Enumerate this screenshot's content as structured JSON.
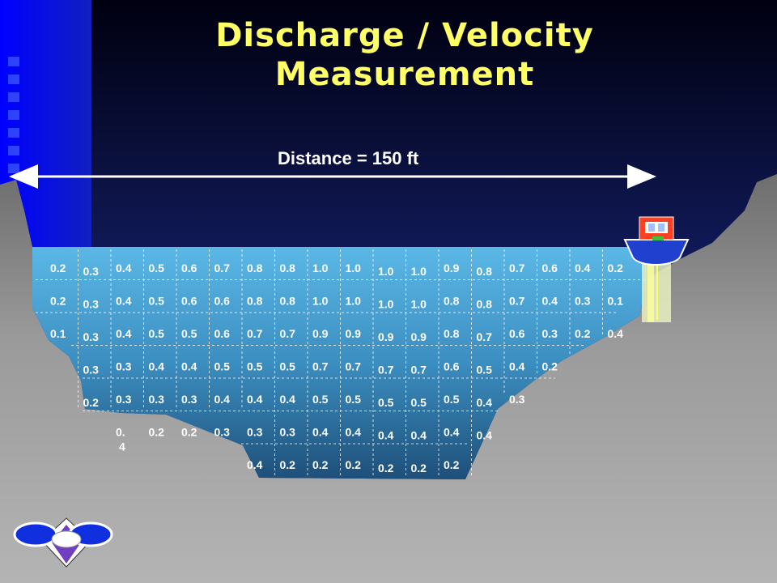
{
  "slide": {
    "title_line1": "Discharge / Velocity",
    "title_line2": "Measurement",
    "distance_label": "Distance = 150 ft",
    "colors": {
      "sky_top": "#000010",
      "sky_bottom": "#2A3AA0",
      "title": "#FFFF66",
      "water_top": "#5BB8E6",
      "water_bottom": "#1E4F7A",
      "bank": "#9A9A9A"
    }
  },
  "velocity_grid": {
    "rows": [
      [
        "0.2",
        "0.3",
        "0.4",
        "0.5",
        "0.6",
        "0.7",
        "0.8",
        "0.8",
        "1.0",
        "1.0",
        "1.0",
        "1.0",
        "0.9",
        "0.8",
        "0.7",
        "0.6",
        "0.4",
        "0.2"
      ],
      [
        "0.2",
        "0.3",
        "0.4",
        "0.5",
        "0.6",
        "0.6",
        "0.8",
        "0.8",
        "1.0",
        "1.0",
        "1.0",
        "1.0",
        "0.8",
        "0.8",
        "0.7",
        "0.4",
        "0.3",
        "0.1"
      ],
      [
        "0.1",
        "0.3",
        "0.4",
        "0.5",
        "0.5",
        "0.6",
        "0.7",
        "0.7",
        "0.9",
        "0.9",
        "0.9",
        "0.9",
        "0.8",
        "0.7",
        "0.6",
        "0.3",
        "0.2",
        "0.4"
      ],
      [
        "",
        "0.3",
        "0.3",
        "0.4",
        "0.4",
        "0.5",
        "0.5",
        "0.5",
        "0.7",
        "0.7",
        "0.7",
        "0.7",
        "0.6",
        "0.5",
        "0.4",
        "0.2",
        "",
        ""
      ],
      [
        "",
        "0.2",
        "0.3",
        "0.3",
        "0.3",
        "0.4",
        "0.4",
        "0.4",
        "0.5",
        "0.5",
        "0.5",
        "0.5",
        "0.5",
        "0.4",
        "0.3",
        "",
        "",
        ""
      ],
      [
        "",
        "",
        "0.\n4",
        "0.2",
        "0.2",
        "0.3",
        "0.3",
        "0.3",
        "0.4",
        "0.4",
        "0.4",
        "0.4",
        "0.4",
        "0.4",
        "",
        "",
        "",
        ""
      ],
      [
        "",
        "",
        "",
        "",
        "",
        "",
        "0.4",
        "0.2",
        "0.2",
        "0.2",
        "0.2",
        "0.2",
        "0.2",
        "",
        "",
        "",
        "",
        ""
      ]
    ]
  },
  "icons": {
    "boat": "boat-icon",
    "logo": "flowmeter-logo-icon"
  }
}
